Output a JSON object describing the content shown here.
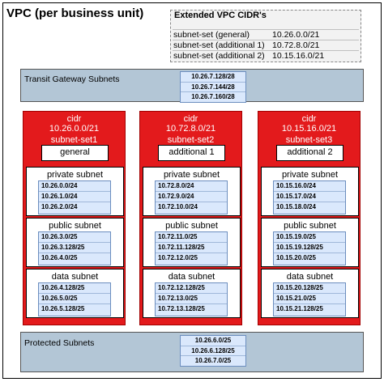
{
  "vpc": {
    "title": "VPC (per business unit)"
  },
  "extended": {
    "title": "Extended VPC CIDR's",
    "rows": [
      {
        "name": "subnet-set (general)",
        "cidr": "10.26.0.0/21"
      },
      {
        "name": "subnet-set (additional 1)",
        "cidr": "10.72.8.0/21"
      },
      {
        "name": "subnet-set (additional 2)",
        "cidr": "10.15.16.0/21"
      }
    ]
  },
  "transit": {
    "label": "Transit Gateway Subnets",
    "cidrs": [
      "10.26.7.128/28",
      "10.26.7.144/28",
      "10.26.7.160/28"
    ]
  },
  "protected": {
    "label": "Protected Subnets",
    "cidrs": [
      "10.26.6.0/25",
      "10.26.6.128/25",
      "10.26.7.0/25"
    ]
  },
  "columns": [
    {
      "cidr_label": "cidr",
      "cidr": "10.26.0.0/21",
      "set_label": "subnet-set1",
      "set_name": "general",
      "subnets": [
        {
          "title": "private subnet",
          "cidrs": [
            "10.26.0.0/24",
            "10.26.1.0/24",
            "10.26.2.0/24"
          ]
        },
        {
          "title": "public subnet",
          "cidrs": [
            "10.26.3.0/25",
            "10.26.3.128/25",
            "10.26.4.0/25"
          ]
        },
        {
          "title": "data subnet",
          "cidrs": [
            "10.26.4.128/25",
            "10.26.5.0/25",
            "10.26.5.128/25"
          ]
        }
      ]
    },
    {
      "cidr_label": "cidr",
      "cidr": "10.72.8.0/21",
      "set_label": "subnet-set2",
      "set_name": "additional 1",
      "subnets": [
        {
          "title": "private subnet",
          "cidrs": [
            "10.72.8.0/24",
            "10.72.9.0/24",
            "10.72.10.0/24"
          ]
        },
        {
          "title": "public subnet",
          "cidrs": [
            "10.72.11.0/25",
            "10.72.11.128/25",
            "10.72.12.0/25"
          ]
        },
        {
          "title": "data subnet",
          "cidrs": [
            "10.72.12.128/25",
            "10.72.13.0/25",
            "10.72.13.128/25"
          ]
        }
      ]
    },
    {
      "cidr_label": "cidr",
      "cidr": "10.15.16.0/21",
      "set_label": "subnet-set3",
      "set_name": "additional 2",
      "subnets": [
        {
          "title": "private subnet",
          "cidrs": [
            "10.15.16.0/24",
            "10.15.17.0/24",
            "10.15.18.0/24"
          ]
        },
        {
          "title": "public subnet",
          "cidrs": [
            "10.15.19.0/25",
            "10.15.19.128/25",
            "10.15.20.0/25"
          ]
        },
        {
          "title": "data subnet",
          "cidrs": [
            "10.15.20.128/25",
            "10.15.21.0/25",
            "10.15.21.128/25"
          ]
        }
      ]
    }
  ]
}
